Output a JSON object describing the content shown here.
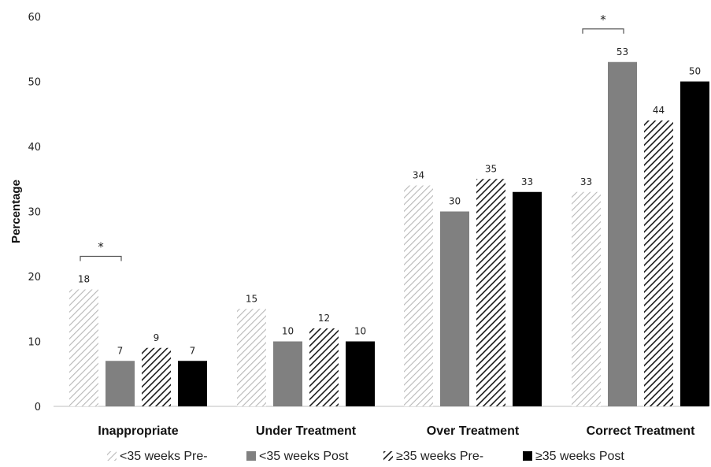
{
  "chart_data": {
    "type": "bar",
    "ylabel": "Percentage",
    "xlabel": "",
    "ylim": [
      0,
      60
    ],
    "yticks": [
      0,
      10,
      20,
      30,
      40,
      50,
      60
    ],
    "categories": [
      "Inappropriate",
      "Under Treatment",
      "Over Treatment",
      "Correct Treatment"
    ],
    "series": [
      {
        "name": "<35 weeks Pre-",
        "values": [
          18,
          15,
          34,
          33
        ],
        "style": "light-hatch",
        "color": "#b8b8b8"
      },
      {
        "name": "<35 weeks Post",
        "values": [
          7,
          10,
          30,
          53
        ],
        "style": "solid",
        "color": "#808080"
      },
      {
        "name": "≥35 weeks Pre-",
        "values": [
          9,
          12,
          35,
          44
        ],
        "style": "dark-hatch",
        "color": "#1a1a1a"
      },
      {
        "name": "≥35 weeks Post",
        "values": [
          7,
          10,
          33,
          50
        ],
        "style": "solid",
        "color": "#000000"
      }
    ],
    "annotations": [
      {
        "text": "*",
        "category_index": 0,
        "from_series": 0,
        "to_series": 1
      },
      {
        "text": "*",
        "category_index": 3,
        "from_series": 0,
        "to_series": 1
      }
    ],
    "legend_position": "bottom",
    "grid": false
  }
}
